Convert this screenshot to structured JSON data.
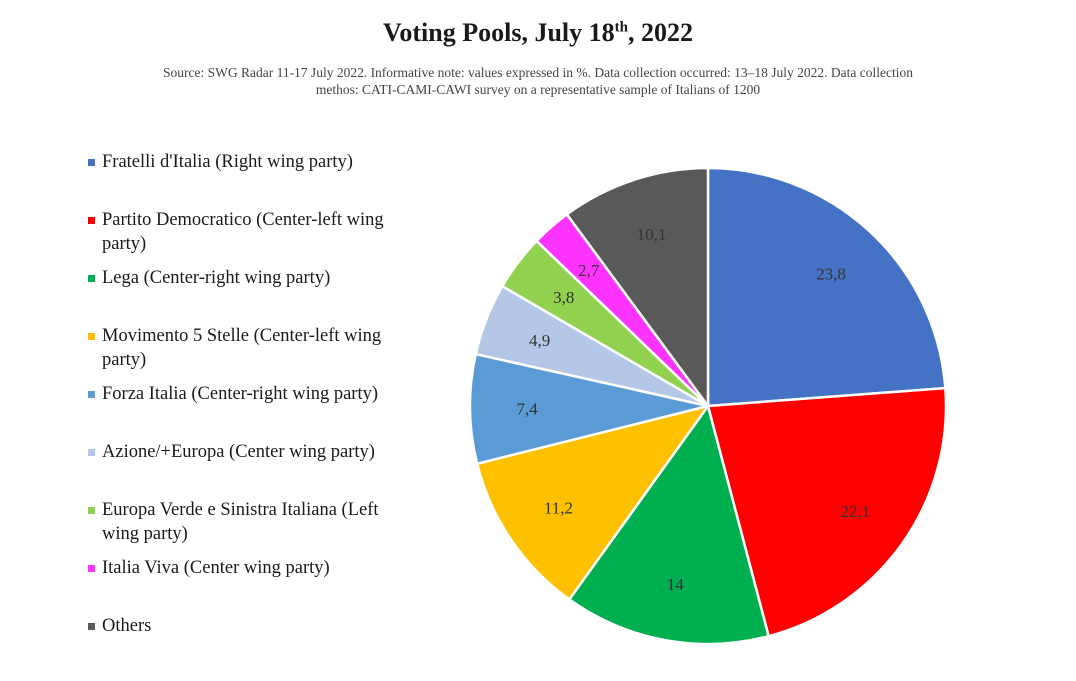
{
  "chart_data": {
    "type": "pie",
    "title_main": "Voting Pools, July 18",
    "title_sup": "th",
    "title_tail": ", 2022",
    "subtitle": "Source: SWG Radar 11-17 July 2022. Informative note: values expressed in %. Data collection occurred: 13–18 July 2022. Data collection methos: CATI-CAMI-CAWI survey on a representative sample of Italians of 1200",
    "legend_placement": "left",
    "slices": [
      {
        "label": "Fratelli d'Italia (Right wing party)",
        "value": 23.8,
        "value_label": "23,8",
        "color": "#4472C4"
      },
      {
        "label": "Partito Democratico (Center-left wing party)",
        "value": 22.1,
        "value_label": "22,1",
        "color": "#FF0000"
      },
      {
        "label": "Lega  (Center-right wing party)",
        "value": 14,
        "value_label": "14",
        "color": "#00B050"
      },
      {
        "label": "Movimento 5 Stelle (Center-left wing party)",
        "value": 11.2,
        "value_label": "11,2",
        "color": "#FFC000"
      },
      {
        "label": "Forza Italia (Center-right wing party)",
        "value": 7.4,
        "value_label": "7,4",
        "color": "#5B9BD5"
      },
      {
        "label": "Azione/+Europa (Center wing party)",
        "value": 4.9,
        "value_label": "4,9",
        "color": "#B4C7E7"
      },
      {
        "label": "Europa Verde e Sinistra Italiana (Left wing party)",
        "value": 3.8,
        "value_label": "3,8",
        "color": "#92D050"
      },
      {
        "label": "Italia Viva (Center wing party)",
        "value": 2.7,
        "value_label": "2,7",
        "color": "#FF33FF"
      },
      {
        "label": "Others",
        "value": 10.1,
        "value_label": "10,1",
        "color": "#595959"
      }
    ]
  }
}
